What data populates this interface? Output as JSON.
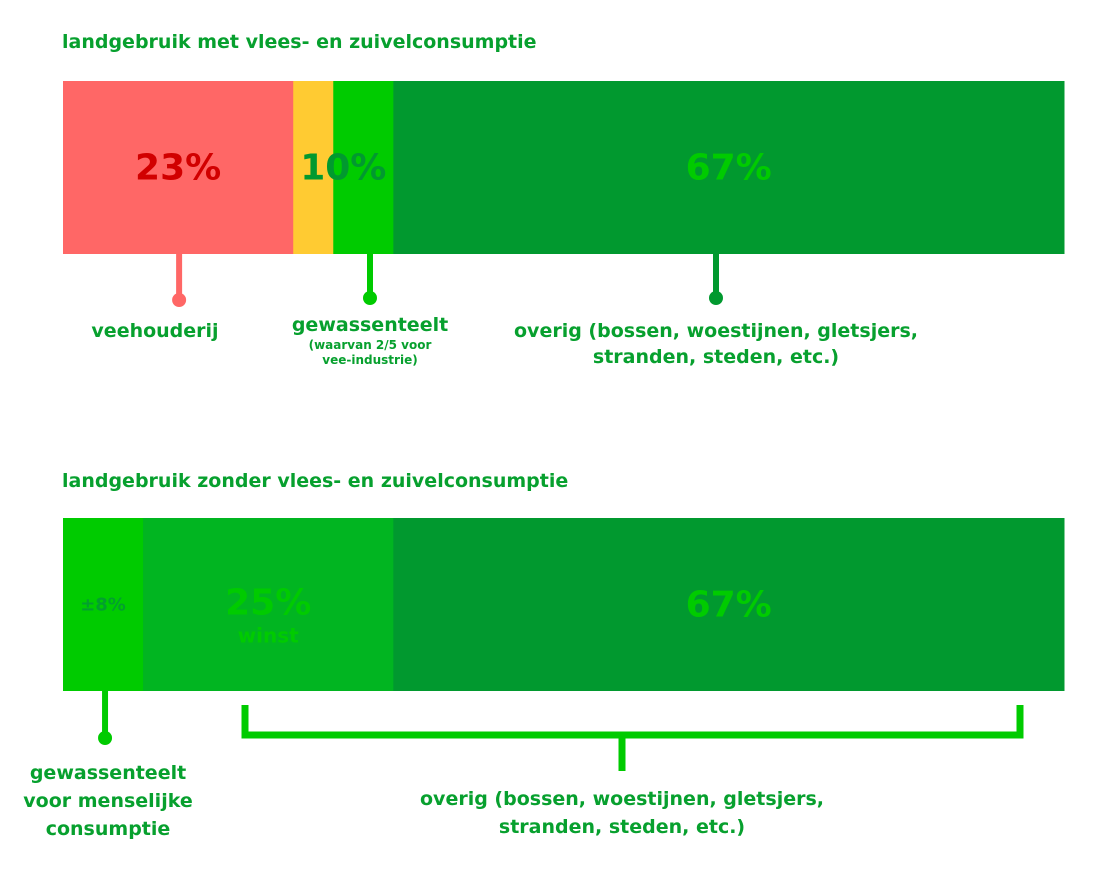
{
  "colors": {
    "red": "#ff6766",
    "dark_red": "#d10000",
    "yellow": "#ffcb32",
    "light_green": "#00cb00",
    "green": "#02a02e",
    "mid_green": "#01b521",
    "dark_green": "#01992f",
    "text_green": "#07a02e"
  },
  "chart_data": [
    {
      "type": "bar",
      "stacked": true,
      "orientation": "horizontal",
      "title": "landgebruik met vlees- en zuivelconsumptie",
      "segments": [
        {
          "value": 23,
          "color": "#ff6766",
          "label": "23%",
          "label_color": "#d10000"
        },
        {
          "value": 4,
          "color": "#ffcb32",
          "label": ""
        },
        {
          "value": 6,
          "color": "#00cb00",
          "label": ""
        },
        {
          "value": 67,
          "color": "#01992f",
          "label": "67%",
          "label_color": "#00cb00"
        }
      ],
      "group_labels": [
        {
          "text": "10%",
          "value": 10,
          "color": "#01992f"
        }
      ],
      "annotations": [
        {
          "text": "veehouderij",
          "color": "#ff6766"
        },
        {
          "text": "gewassenteelt",
          "sub": "(waarvan 2/5 voor vee-industrie)",
          "color": "#00cb00"
        },
        {
          "text": "overig (bossen, woestijnen, gletsjers, stranden, steden, etc.)",
          "color": "#01992f"
        }
      ]
    },
    {
      "type": "bar",
      "stacked": true,
      "orientation": "horizontal",
      "title": "landgebruik zonder vlees- en zuivelconsumptie",
      "segments": [
        {
          "value": 8,
          "color": "#00cb00",
          "label": "±8%",
          "label_color": "#02a02e"
        },
        {
          "value": 25,
          "color": "#01b521",
          "label": "25%",
          "sublabel": "winst",
          "label_color": "#00cb00"
        },
        {
          "value": 67,
          "color": "#01992f",
          "label": "67%",
          "label_color": "#00cb00"
        }
      ],
      "annotations": [
        {
          "text": "gewassenteelt voor menselijke consumptie",
          "color": "#00cb00"
        },
        {
          "text": "overig (bossen, woestijnen, gletsjers, stranden, steden, etc.)",
          "color": "#00cb00"
        }
      ]
    }
  ],
  "labels": {
    "veehouderij": "veehouderij",
    "gewassenteelt": "gewassenteelt",
    "gewassenteelt_sub_1": "(waarvan 2/5 voor",
    "gewassenteelt_sub_2": "vee-industrie)",
    "overig_1_line1": "overig (bossen, woestijnen, gletsjers,",
    "overig_1_line2": "stranden, steden, etc.)",
    "menselijk_line1": "gewassenteelt",
    "menselijk_line2": "voor menselijke",
    "menselijk_line3": "consumptie",
    "overig_2_line1": "overig (bossen, woestijnen, gletsjers,",
    "overig_2_line2": "stranden, steden, etc.)"
  }
}
